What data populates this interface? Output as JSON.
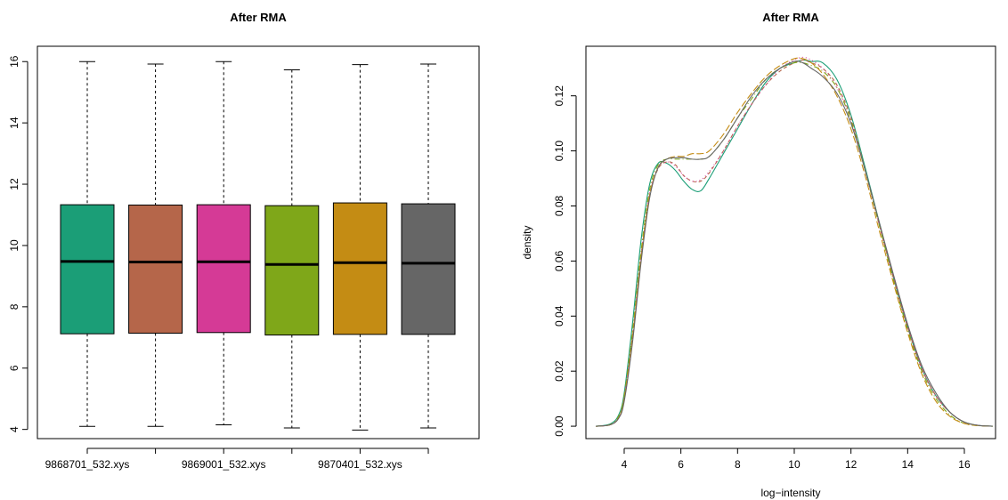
{
  "chart_data": [
    {
      "type": "box",
      "title": "After RMA",
      "xlabel": "",
      "ylabel": "",
      "ylim": [
        3.7,
        16.5
      ],
      "yticks": [
        4,
        6,
        8,
        10,
        12,
        14,
        16
      ],
      "x_tick_labels": [
        "9868701_532.xys",
        "9869001_532.xys",
        "9870401_532.xys"
      ],
      "x_tick_label_positions": [
        1,
        3,
        5
      ],
      "boxes": [
        {
          "index": 1,
          "min": 4.1,
          "q1": 7.12,
          "median": 9.48,
          "q3": 11.33,
          "max": 16.0,
          "color": "#1B9E77"
        },
        {
          "index": 2,
          "min": 4.1,
          "q1": 7.14,
          "median": 9.46,
          "q3": 11.32,
          "max": 15.92,
          "color": "#B5664A"
        },
        {
          "index": 3,
          "min": 4.15,
          "q1": 7.16,
          "median": 9.47,
          "q3": 11.33,
          "max": 16.0,
          "color": "#D53A96"
        },
        {
          "index": 4,
          "min": 4.05,
          "q1": 7.08,
          "median": 9.38,
          "q3": 11.3,
          "max": 15.73,
          "color": "#7FA719"
        },
        {
          "index": 5,
          "min": 3.98,
          "q1": 7.1,
          "median": 9.44,
          "q3": 11.39,
          "max": 15.9,
          "color": "#C48C14"
        },
        {
          "index": 6,
          "min": 4.05,
          "q1": 7.1,
          "median": 9.42,
          "q3": 11.36,
          "max": 15.92,
          "color": "#666666"
        }
      ]
    },
    {
      "type": "line",
      "title": "After RMA",
      "xlabel": "log−intensity",
      "ylabel": "density",
      "xlim": [
        2.65,
        17.1
      ],
      "ylim": [
        -0.0045,
        0.138
      ],
      "xticks": [
        4,
        6,
        8,
        10,
        12,
        14,
        16
      ],
      "yticks": [
        "0.00",
        "0.02",
        "0.04",
        "0.06",
        "0.08",
        "0.10",
        "0.12"
      ],
      "x": [
        3.0,
        3.5,
        3.8,
        4.0,
        4.3,
        4.6,
        4.9,
        5.2,
        5.5,
        5.8,
        6.1,
        6.4,
        6.7,
        7.0,
        7.5,
        8.0,
        8.5,
        9.0,
        9.5,
        10.0,
        10.3,
        10.6,
        11.0,
        11.5,
        12.0,
        12.5,
        13.0,
        13.5,
        14.0,
        14.5,
        15.0,
        15.5,
        16.0,
        16.5,
        17.0
      ],
      "series": [
        {
          "color": "#1B9E77",
          "dash": "solid",
          "values": [
            0.0,
            0.0008,
            0.004,
            0.012,
            0.038,
            0.068,
            0.088,
            0.0955,
            0.0955,
            0.093,
            0.089,
            0.086,
            0.0855,
            0.09,
            0.099,
            0.108,
            0.117,
            0.125,
            0.13,
            0.132,
            0.133,
            0.1325,
            0.132,
            0.126,
            0.113,
            0.094,
            0.074,
            0.054,
            0.036,
            0.021,
            0.011,
            0.005,
            0.0015,
            0.0003,
            0.0
          ]
        },
        {
          "color": "#B5664A",
          "dash": "4,3",
          "values": [
            0.0,
            0.0005,
            0.003,
            0.01,
            0.033,
            0.062,
            0.084,
            0.0935,
            0.096,
            0.095,
            0.091,
            0.089,
            0.089,
            0.092,
            0.1,
            0.109,
            0.117,
            0.124,
            0.129,
            0.132,
            0.133,
            0.132,
            0.13,
            0.124,
            0.112,
            0.093,
            0.073,
            0.054,
            0.036,
            0.021,
            0.011,
            0.005,
            0.0015,
            0.0003,
            0.0
          ]
        },
        {
          "color": "#D53A96",
          "dash": "1,3",
          "values": [
            0.0,
            0.0005,
            0.003,
            0.01,
            0.034,
            0.063,
            0.085,
            0.094,
            0.096,
            0.0945,
            0.091,
            0.089,
            0.0895,
            0.0925,
            0.1,
            0.109,
            0.117,
            0.124,
            0.13,
            0.133,
            0.134,
            0.133,
            0.13,
            0.123,
            0.111,
            0.093,
            0.073,
            0.054,
            0.036,
            0.021,
            0.011,
            0.005,
            0.0015,
            0.0003,
            0.0
          ]
        },
        {
          "color": "#7FA719",
          "dash": "6,3,1,3",
          "values": [
            0.0,
            0.0006,
            0.0035,
            0.011,
            0.035,
            0.064,
            0.086,
            0.095,
            0.097,
            0.097,
            0.097,
            0.097,
            0.097,
            0.098,
            0.104,
            0.112,
            0.119,
            0.126,
            0.13,
            0.132,
            0.132,
            0.131,
            0.129,
            0.123,
            0.111,
            0.093,
            0.073,
            0.053,
            0.035,
            0.02,
            0.01,
            0.004,
            0.001,
            0.0002,
            0.0
          ]
        },
        {
          "color": "#C48C14",
          "dash": "8,3",
          "values": [
            0.0,
            0.0005,
            0.003,
            0.01,
            0.033,
            0.062,
            0.084,
            0.094,
            0.097,
            0.098,
            0.098,
            0.099,
            0.099,
            0.1,
            0.106,
            0.114,
            0.121,
            0.127,
            0.131,
            0.1335,
            0.1335,
            0.132,
            0.128,
            0.12,
            0.108,
            0.091,
            0.071,
            0.052,
            0.034,
            0.019,
            0.009,
            0.0035,
            0.001,
            0.0002,
            0.0
          ]
        },
        {
          "color": "#666666",
          "dash": "solid",
          "values": [
            0.0,
            0.0005,
            0.0028,
            0.009,
            0.031,
            0.06,
            0.083,
            0.094,
            0.097,
            0.0975,
            0.0975,
            0.097,
            0.097,
            0.098,
            0.104,
            0.112,
            0.12,
            0.126,
            0.13,
            0.1325,
            0.132,
            0.13,
            0.127,
            0.121,
            0.11,
            0.093,
            0.074,
            0.055,
            0.037,
            0.022,
            0.012,
            0.005,
            0.0015,
            0.0003,
            0.0
          ]
        }
      ]
    }
  ]
}
